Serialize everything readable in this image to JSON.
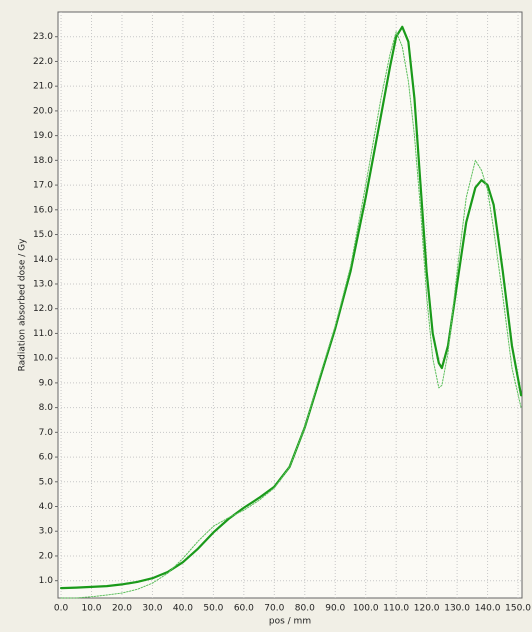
{
  "chart_data": {
    "type": "line",
    "ylabel": "Radiation absorbed dose / Gy",
    "xlabel": "pos / mm",
    "x": [
      0,
      5,
      10,
      15,
      20,
      25,
      30,
      35,
      40,
      45,
      50,
      55,
      60,
      65,
      70,
      75,
      80,
      85,
      90,
      95,
      100,
      105,
      108,
      110,
      112,
      114,
      116,
      118,
      120,
      122,
      124,
      125,
      127,
      130,
      133,
      136,
      138,
      140,
      142,
      145,
      148,
      151
    ],
    "series": [
      {
        "color": "#1a9a1a",
        "style": "solid",
        "values": [
          0.7,
          0.72,
          0.75,
          0.78,
          0.85,
          0.95,
          1.1,
          1.35,
          1.75,
          2.3,
          2.95,
          3.5,
          3.95,
          4.35,
          4.8,
          5.6,
          7.2,
          9.2,
          11.2,
          13.5,
          16.5,
          19.8,
          21.8,
          23.0,
          23.4,
          22.8,
          20.5,
          17,
          13.5,
          11,
          9.8,
          9.6,
          10.5,
          13,
          15.5,
          16.9,
          17.2,
          17.0,
          16.2,
          13.5,
          10.5,
          8.5
        ]
      },
      {
        "color": "#5cbf5c",
        "style": "dotted",
        "values": [
          0.3,
          0.3,
          0.35,
          0.42,
          0.5,
          0.65,
          0.9,
          1.3,
          1.9,
          2.6,
          3.2,
          3.55,
          3.85,
          4.25,
          4.75,
          5.6,
          7.2,
          9.3,
          11.3,
          13.7,
          17,
          20.5,
          22.3,
          23.2,
          22.6,
          21.2,
          19,
          16,
          12.5,
          10,
          8.8,
          8.9,
          10.2,
          13.5,
          16.5,
          18.0,
          17.6,
          16.8,
          15.2,
          12.5,
          9.6,
          8.0
        ]
      }
    ],
    "xlim": [
      -1,
      151.3
    ],
    "ylim": [
      0.3,
      24.0
    ],
    "xticks": [
      {
        "value": 0,
        "label": "0.0"
      },
      {
        "value": 10,
        "label": "10.0"
      },
      {
        "value": 20,
        "label": "20.0"
      },
      {
        "value": 30,
        "label": "30.0"
      },
      {
        "value": 40,
        "label": "40.0"
      },
      {
        "value": 50,
        "label": "50.0"
      },
      {
        "value": 60,
        "label": "60.0"
      },
      {
        "value": 70,
        "label": "70.0"
      },
      {
        "value": 80,
        "label": "80.0"
      },
      {
        "value": 90,
        "label": "90.0"
      },
      {
        "value": 100,
        "label": "100.0"
      },
      {
        "value": 110,
        "label": "110.0"
      },
      {
        "value": 120,
        "label": "120.0"
      },
      {
        "value": 130,
        "label": "130.0"
      },
      {
        "value": 140,
        "label": "140.0"
      },
      {
        "value": 150,
        "label": "150.0"
      }
    ],
    "yticks": [
      {
        "value": 1,
        "label": "1.0"
      },
      {
        "value": 2,
        "label": "2.0"
      },
      {
        "value": 3,
        "label": "3.0"
      },
      {
        "value": 4,
        "label": "4.0"
      },
      {
        "value": 5,
        "label": "5.0"
      },
      {
        "value": 6,
        "label": "6.0"
      },
      {
        "value": 7,
        "label": "7.0"
      },
      {
        "value": 8,
        "label": "8.0"
      },
      {
        "value": 9,
        "label": "9.0"
      },
      {
        "value": 10,
        "label": "10.0"
      },
      {
        "value": 11,
        "label": "11.0"
      },
      {
        "value": 12,
        "label": "12.0"
      },
      {
        "value": 13,
        "label": "13.0"
      },
      {
        "value": 14,
        "label": "14.0"
      },
      {
        "value": 15,
        "label": "15.0"
      },
      {
        "value": 16,
        "label": "16.0"
      },
      {
        "value": 17,
        "label": "17.0"
      },
      {
        "value": 18,
        "label": "18.0"
      },
      {
        "value": 19,
        "label": "19.0"
      },
      {
        "value": 20,
        "label": "20.0"
      },
      {
        "value": 21,
        "label": "21.0"
      },
      {
        "value": 22,
        "label": "22.0"
      },
      {
        "value": 23,
        "label": "23.0"
      }
    ],
    "grid": true
  }
}
